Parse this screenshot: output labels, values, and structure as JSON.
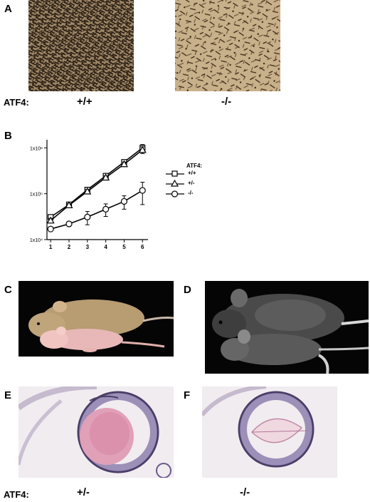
{
  "panels": {
    "a": {
      "letter": "A",
      "label": "ATF4:",
      "genotypes": [
        "+/+",
        "-/-"
      ]
    },
    "b": {
      "letter": "B",
      "legend_title": "ATF4:",
      "legend": [
        "+/+",
        "+/-",
        "-/-"
      ]
    },
    "c": {
      "letter": "C"
    },
    "d": {
      "letter": "D"
    },
    "e": {
      "letter": "E"
    },
    "f": {
      "letter": "F"
    },
    "bottom": {
      "label": "ATF4:",
      "genotypes": [
        "+/-",
        "-/-"
      ]
    }
  },
  "chart_data": {
    "type": "line",
    "title": "",
    "xlabel": "",
    "ylabel": "",
    "x": [
      1,
      2,
      3,
      4,
      5,
      6
    ],
    "xticks": [
      "1",
      "2",
      "3",
      "4",
      "5",
      "6"
    ],
    "y_scale": "log",
    "yticks": [
      "1x10⁴",
      "1x10⁵",
      "1x10⁶"
    ],
    "ylim": [
      10000,
      1500000
    ],
    "legend_position": "right",
    "series": [
      {
        "name": "+/+",
        "marker": "square",
        "values": [
          31000,
          58000,
          122000,
          245000,
          490000,
          1000000
        ],
        "err": [
          4000,
          6000,
          15000,
          25000,
          60000,
          180000
        ]
      },
      {
        "name": "+/-",
        "marker": "triangle",
        "values": [
          26000,
          56000,
          112000,
          225000,
          440000,
          900000
        ],
        "err": [
          3000,
          5000,
          12000,
          20000,
          50000,
          150000
        ]
      },
      {
        "name": "-/-",
        "marker": "circle",
        "values": [
          17000,
          22000,
          31000,
          46000,
          68000,
          118000
        ],
        "err": [
          1500,
          2500,
          10000,
          14000,
          22000,
          60000
        ]
      }
    ]
  }
}
